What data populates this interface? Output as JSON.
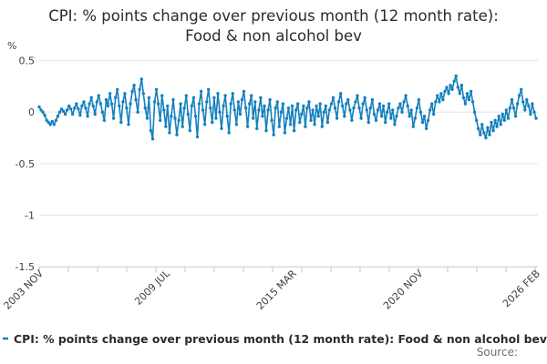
{
  "title": {
    "line1": "CPI: % points change over previous month (12 month rate):",
    "line2": "Food & non alcohol bev"
  },
  "legend": {
    "label": "CPI: % points change over previous month (12 month rate): Food & non alcohol bev"
  },
  "source_label": "Source:",
  "colors": {
    "line": "#1380be",
    "grid": "#e6e6e6",
    "axis": "#c6cfe0",
    "text": "#414042",
    "muted": "#6e6e6e"
  },
  "chart_data": {
    "type": "line",
    "title": "CPI: % points change over previous month (12 month rate): Food & non alcohol bev",
    "ylabel": "%",
    "xlabel": "",
    "x_start": "2003 NOV",
    "x_end": "2026 FEB",
    "frequency": "monthly",
    "ylim": [
      -1.5,
      0.5
    ],
    "y_ticks": [
      0.5,
      0,
      -0.5,
      -1,
      -1.5
    ],
    "x_tick_labels": [
      "2003 NOV",
      "2009 JUL",
      "2015 MAR",
      "2020 NOV",
      "2026 FEB"
    ],
    "x_label_indices": [
      0,
      68,
      136,
      204,
      267
    ],
    "grid": true,
    "legend_position": "bottom",
    "marker": "circle",
    "values": [
      0.05,
      0.02,
      0,
      -0.03,
      -0.08,
      -0.1,
      -0.12,
      -0.09,
      -0.12,
      -0.08,
      -0.04,
      0,
      0.03,
      0.01,
      -0.02,
      0.02,
      0.06,
      0.03,
      -0.02,
      0.04,
      0.08,
      0.03,
      -0.03,
      0.06,
      0.1,
      0.04,
      -0.04,
      0.08,
      0.14,
      0.06,
      -0.02,
      0.1,
      0.16,
      0.08,
      0,
      -0.08,
      0.12,
      0.06,
      0.18,
      0.08,
      -0.06,
      0.14,
      0.22,
      0.06,
      -0.1,
      0.1,
      0.18,
      0.04,
      -0.12,
      0.08,
      0.2,
      0.26,
      0.12,
      0,
      0.22,
      0.32,
      0.18,
      0.04,
      -0.06,
      0.14,
      -0.18,
      -0.26,
      0.1,
      0.22,
      0.08,
      -0.08,
      0.16,
      0.02,
      -0.14,
      0.06,
      -0.2,
      -0.04,
      0.12,
      -0.06,
      -0.22,
      -0.08,
      0.08,
      -0.14,
      0.04,
      0.16,
      -0.02,
      -0.18,
      0.06,
      0.14,
      -0.04,
      -0.24,
      0.08,
      0.2,
      0.02,
      -0.12,
      0.1,
      0.22,
      0.04,
      -0.1,
      0.14,
      -0.06,
      0.18,
      0,
      -0.16,
      0.06,
      0.16,
      -0.04,
      -0.2,
      0.08,
      0.18,
      0.02,
      -0.12,
      0.1,
      -0.02,
      0.12,
      0.2,
      0.04,
      -0.14,
      0.08,
      0.16,
      -0.06,
      0.1,
      -0.16,
      0.02,
      0.14,
      -0.04,
      0.06,
      -0.18,
      0.02,
      0.12,
      -0.08,
      -0.22,
      0.04,
      0.1,
      -0.14,
      0,
      0.08,
      -0.2,
      -0.06,
      0.04,
      -0.12,
      0.06,
      -0.18,
      0.02,
      0.08,
      -0.1,
      -0.02,
      0.06,
      -0.14,
      0.04,
      0.1,
      -0.08,
      0.02,
      -0.12,
      0.06,
      -0.04,
      0.08,
      -0.14,
      0,
      0.06,
      -0.1,
      0.02,
      0.08,
      0.14,
      0.04,
      -0.06,
      0.1,
      0.18,
      0.06,
      -0.04,
      0.08,
      0.12,
      0.02,
      -0.08,
      0.04,
      0.1,
      0.16,
      0.04,
      -0.06,
      0.08,
      0.14,
      0.02,
      -0.1,
      0.04,
      0.12,
      -0.02,
      -0.08,
      0.02,
      0.08,
      -0.04,
      0.06,
      -0.1,
      0,
      0.08,
      -0.06,
      0.02,
      -0.12,
      -0.04,
      0.04,
      0.08,
      0,
      0.1,
      0.16,
      0.06,
      -0.04,
      0.02,
      -0.14,
      -0.06,
      0.04,
      0.12,
      0,
      -0.1,
      -0.04,
      -0.16,
      -0.08,
      0.02,
      0.08,
      -0.02,
      0.1,
      0.16,
      0.1,
      0.18,
      0.12,
      0.2,
      0.24,
      0.18,
      0.26,
      0.22,
      0.3,
      0.35,
      0.24,
      0.18,
      0.26,
      0.14,
      0.08,
      0.18,
      0.12,
      0.2,
      0.1,
      0,
      -0.08,
      -0.16,
      -0.22,
      -0.12,
      -0.2,
      -0.25,
      -0.15,
      -0.22,
      -0.1,
      -0.18,
      -0.08,
      -0.14,
      -0.04,
      -0.12,
      -0.02,
      -0.08,
      0.02,
      -0.06,
      0.04,
      0.12,
      0.04,
      -0.04,
      0.08,
      0.16,
      0.22,
      0.1,
      0.02,
      0.12,
      0.06,
      -0.02,
      0.08,
      0,
      -0.06
    ]
  }
}
